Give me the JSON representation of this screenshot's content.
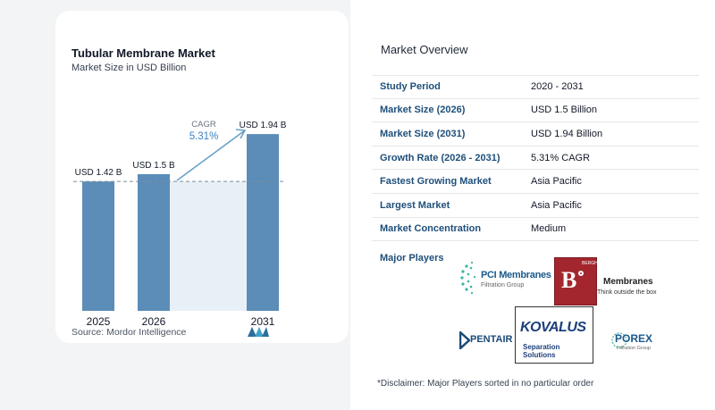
{
  "chart_data": {
    "type": "bar",
    "title": "Tubular Membrane Market",
    "subtitle": "Market Size in USD Billion",
    "categories": [
      "2025",
      "2026",
      "2031"
    ],
    "values": [
      1.42,
      1.5,
      1.94
    ],
    "value_labels": [
      "USD 1.42 B",
      "USD 1.5 B",
      "USD 1.94 B"
    ],
    "cagr_label": "CAGR",
    "cagr_value": "5.31%",
    "ylim": [
      0,
      2.0
    ],
    "grid": false,
    "bar_color": "#5b8db8",
    "shade_color": "#e8f0f7",
    "arrow_color": "#6ba1c8"
  },
  "source": "Source:  Mordor Intelligence",
  "overview": {
    "title": "Market Overview",
    "rows": [
      {
        "label": "Study Period",
        "value": "2020 - 2031"
      },
      {
        "label": "Market Size (2026)",
        "value": "USD 1.5 Billion"
      },
      {
        "label": "Market Size (2031)",
        "value": "USD 1.94 Billion"
      },
      {
        "label": "Growth Rate (2026 - 2031)",
        "value": "5.31% CAGR"
      },
      {
        "label": "Fastest Growing Market",
        "value": "Asia Pacific"
      },
      {
        "label": "Largest Market",
        "value": "Asia Pacific"
      },
      {
        "label": "Market Concentration",
        "value": "Medium"
      }
    ],
    "players_label": "Major Players",
    "players": {
      "pci": {
        "name": "PCI Membranes",
        "tag": "Filtration Group"
      },
      "berghof": {
        "mark": "B",
        "name": "BERGHOF",
        "brand": "Membranes",
        "tag": "Think outside the box"
      },
      "pentair": {
        "name": "PENTAIR"
      },
      "kovalus": {
        "name": "KOVALUS",
        "tag": "Separation Solutions"
      },
      "porex": {
        "name": "POREX",
        "tag": "Filtration Group"
      }
    },
    "disclaimer": "*Disclaimer: Major Players sorted in no particular order"
  }
}
